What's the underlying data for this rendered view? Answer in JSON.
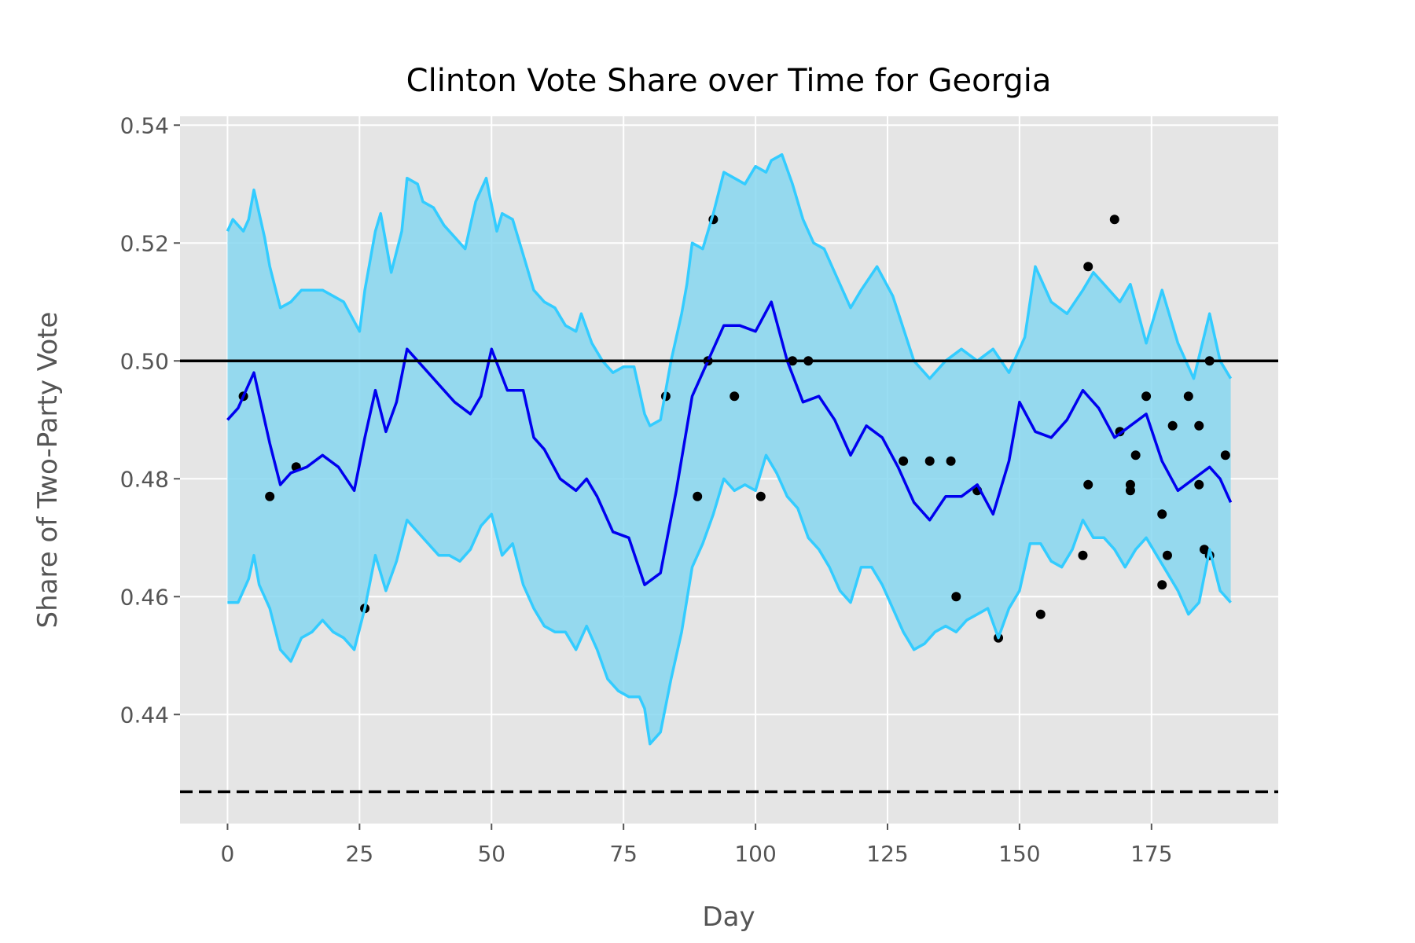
{
  "chart_data": {
    "type": "line",
    "title": "Clinton Vote Share over Time for Georgia",
    "xlabel": "Day",
    "ylabel": "Share of Two-Party Vote",
    "xlim": [
      -9,
      199
    ],
    "ylim": [
      0.4215,
      0.5415
    ],
    "xticks": [
      0,
      25,
      50,
      75,
      100,
      125,
      150,
      175
    ],
    "yticks": [
      0.44,
      0.46,
      0.48,
      0.5,
      0.52,
      0.54
    ],
    "xtick_labels": [
      "0",
      "25",
      "50",
      "75",
      "100",
      "125",
      "150",
      "175"
    ],
    "ytick_labels": [
      "0.44",
      "0.46",
      "0.48",
      "0.50",
      "0.52",
      "0.54"
    ],
    "grid": true,
    "legend": "none",
    "colors": {
      "background": "#e5e5e5",
      "grid": "#ffffff",
      "mean": "#0000ee",
      "band_edge": "#33ccff",
      "band_fill": "#87d7f0",
      "reference": "#000000",
      "points": "#000000"
    },
    "reference_lines": [
      {
        "y": 0.5,
        "style": "solid"
      },
      {
        "y": 0.4269,
        "style": "dashed"
      }
    ],
    "series": [
      {
        "role": "mean",
        "x": [
          0,
          2,
          5,
          8,
          10,
          12,
          15,
          18,
          21,
          24,
          26,
          28,
          30,
          32,
          34,
          37,
          40,
          43,
          46,
          48,
          50,
          53,
          56,
          58,
          60,
          63,
          66,
          68,
          70,
          73,
          76,
          79,
          82,
          85,
          88,
          91,
          94,
          97,
          100,
          103,
          106,
          109,
          112,
          115,
          118,
          121,
          124,
          127,
          130,
          133,
          136,
          139,
          142,
          145,
          148,
          150,
          153,
          156,
          159,
          162,
          165,
          168,
          171,
          174,
          177,
          180,
          183,
          186,
          188,
          190
        ],
        "values": [
          0.49,
          0.492,
          0.498,
          0.486,
          0.479,
          0.481,
          0.482,
          0.484,
          0.482,
          0.478,
          0.487,
          0.495,
          0.488,
          0.493,
          0.502,
          0.499,
          0.496,
          0.493,
          0.491,
          0.494,
          0.502,
          0.495,
          0.495,
          0.487,
          0.485,
          0.48,
          0.478,
          0.48,
          0.477,
          0.471,
          0.47,
          0.462,
          0.464,
          0.478,
          0.494,
          0.5,
          0.506,
          0.506,
          0.505,
          0.51,
          0.5,
          0.493,
          0.494,
          0.49,
          0.484,
          0.489,
          0.487,
          0.482,
          0.476,
          0.473,
          0.477,
          0.477,
          0.479,
          0.474,
          0.483,
          0.493,
          0.488,
          0.487,
          0.49,
          0.495,
          0.492,
          0.487,
          0.489,
          0.491,
          0.483,
          0.478,
          0.48,
          0.482,
          0.48,
          0.476
        ]
      },
      {
        "role": "upper",
        "x": [
          0,
          1,
          2,
          3,
          4,
          5,
          7,
          8,
          10,
          12,
          14,
          16,
          18,
          20,
          22,
          25,
          26,
          28,
          29,
          31,
          33,
          34,
          36,
          37,
          39,
          41,
          43,
          45,
          47,
          49,
          51,
          52,
          54,
          56,
          58,
          60,
          62,
          64,
          66,
          67,
          69,
          71,
          73,
          75,
          77,
          79,
          80,
          82,
          84,
          86,
          87,
          88,
          90,
          92,
          94,
          96,
          98,
          100,
          102,
          103,
          105,
          107,
          109,
          111,
          113,
          115,
          118,
          120,
          123,
          126,
          130,
          133,
          136,
          139,
          142,
          145,
          148,
          151,
          153,
          156,
          159,
          162,
          164,
          166,
          169,
          171,
          174,
          177,
          180,
          183,
          186,
          188,
          190
        ],
        "values": [
          0.522,
          0.524,
          0.523,
          0.522,
          0.524,
          0.529,
          0.521,
          0.516,
          0.509,
          0.51,
          0.512,
          0.512,
          0.512,
          0.511,
          0.51,
          0.505,
          0.512,
          0.522,
          0.525,
          0.515,
          0.522,
          0.531,
          0.53,
          0.527,
          0.526,
          0.523,
          0.521,
          0.519,
          0.527,
          0.531,
          0.522,
          0.525,
          0.524,
          0.518,
          0.512,
          0.51,
          0.509,
          0.506,
          0.505,
          0.508,
          0.503,
          0.5,
          0.498,
          0.499,
          0.499,
          0.491,
          0.489,
          0.49,
          0.5,
          0.508,
          0.513,
          0.52,
          0.519,
          0.525,
          0.532,
          0.531,
          0.53,
          0.533,
          0.532,
          0.534,
          0.535,
          0.53,
          0.524,
          0.52,
          0.519,
          0.515,
          0.509,
          0.512,
          0.516,
          0.511,
          0.5,
          0.497,
          0.5,
          0.502,
          0.5,
          0.502,
          0.498,
          0.504,
          0.516,
          0.51,
          0.508,
          0.512,
          0.515,
          0.513,
          0.51,
          0.513,
          0.503,
          0.512,
          0.503,
          0.497,
          0.508,
          0.5,
          0.497
        ]
      },
      {
        "role": "lower",
        "x": [
          0,
          2,
          4,
          5,
          6,
          8,
          10,
          12,
          14,
          16,
          18,
          20,
          22,
          24,
          26,
          28,
          30,
          32,
          34,
          36,
          38,
          40,
          42,
          44,
          46,
          48,
          50,
          52,
          54,
          56,
          58,
          60,
          62,
          64,
          66,
          68,
          70,
          72,
          74,
          76,
          78,
          79,
          80,
          82,
          84,
          86,
          88,
          90,
          92,
          94,
          96,
          98,
          100,
          102,
          104,
          106,
          108,
          110,
          112,
          114,
          116,
          118,
          120,
          122,
          124,
          126,
          128,
          130,
          132,
          134,
          136,
          138,
          140,
          142,
          144,
          146,
          148,
          150,
          152,
          154,
          156,
          158,
          160,
          162,
          164,
          166,
          168,
          170,
          172,
          174,
          176,
          178,
          180,
          182,
          184,
          186,
          188,
          190
        ],
        "values": [
          0.459,
          0.459,
          0.463,
          0.467,
          0.462,
          0.458,
          0.451,
          0.449,
          0.453,
          0.454,
          0.456,
          0.454,
          0.453,
          0.451,
          0.458,
          0.467,
          0.461,
          0.466,
          0.473,
          0.471,
          0.469,
          0.467,
          0.467,
          0.466,
          0.468,
          0.472,
          0.474,
          0.467,
          0.469,
          0.462,
          0.458,
          0.455,
          0.454,
          0.454,
          0.451,
          0.455,
          0.451,
          0.446,
          0.444,
          0.443,
          0.443,
          0.441,
          0.435,
          0.437,
          0.446,
          0.454,
          0.465,
          0.469,
          0.474,
          0.48,
          0.478,
          0.479,
          0.478,
          0.484,
          0.481,
          0.477,
          0.475,
          0.47,
          0.468,
          0.465,
          0.461,
          0.459,
          0.465,
          0.465,
          0.462,
          0.458,
          0.454,
          0.451,
          0.452,
          0.454,
          0.455,
          0.454,
          0.456,
          0.457,
          0.458,
          0.453,
          0.458,
          0.461,
          0.469,
          0.469,
          0.466,
          0.465,
          0.468,
          0.473,
          0.47,
          0.47,
          0.468,
          0.465,
          0.468,
          0.47,
          0.467,
          0.464,
          0.461,
          0.457,
          0.459,
          0.468,
          0.461,
          0.459
        ]
      }
    ],
    "points": {
      "x": [
        3,
        8,
        13,
        26,
        83,
        89,
        91,
        92,
        96,
        101,
        107,
        110,
        128,
        133,
        137,
        138,
        142,
        146,
        154,
        162,
        163,
        163,
        168,
        169,
        171,
        171,
        172,
        174,
        177,
        177,
        178,
        179,
        182,
        184,
        184,
        185,
        186,
        186,
        189
      ],
      "values": [
        0.494,
        0.477,
        0.482,
        0.458,
        0.494,
        0.477,
        0.5,
        0.524,
        0.494,
        0.477,
        0.5,
        0.5,
        0.483,
        0.483,
        0.483,
        0.46,
        0.478,
        0.453,
        0.457,
        0.467,
        0.479,
        0.516,
        0.524,
        0.488,
        0.479,
        0.478,
        0.484,
        0.494,
        0.462,
        0.474,
        0.467,
        0.489,
        0.494,
        0.479,
        0.489,
        0.468,
        0.467,
        0.5,
        0.484
      ]
    }
  }
}
